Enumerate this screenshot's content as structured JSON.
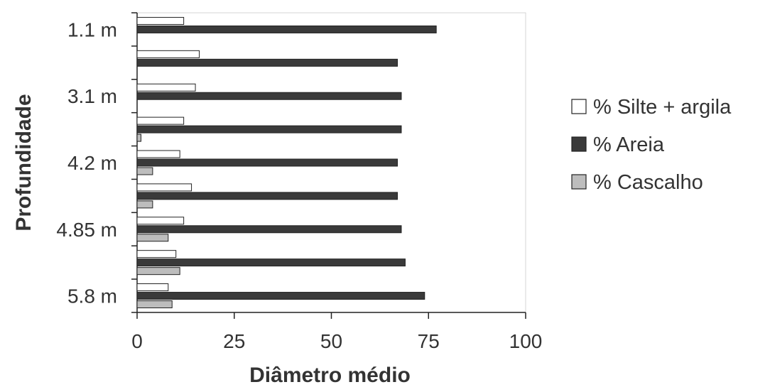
{
  "chart_data": {
    "type": "bar",
    "orientation": "horizontal",
    "xlabel": "Diâmetro médio",
    "ylabel": "Profundidade",
    "xlim": [
      0,
      100
    ],
    "xticks": [
      0,
      25,
      50,
      75,
      100
    ],
    "ytick_labels": [
      {
        "label": "1.1 m",
        "group": 0
      },
      {
        "label": "3.1 m",
        "group": 2
      },
      {
        "label": "4.2 m",
        "group": 4
      },
      {
        "label": "4.85 m",
        "group": 6
      },
      {
        "label": "5.8 m",
        "group": 8
      }
    ],
    "series": [
      {
        "name": "% Silte + argila",
        "color": "#ffffff",
        "values": [
          12,
          16,
          15,
          12,
          11,
          14,
          12,
          10,
          8
        ]
      },
      {
        "name": "% Areia",
        "color": "#3a3a3a",
        "values": [
          77,
          67,
          68,
          68,
          67,
          67,
          68,
          69,
          74
        ]
      },
      {
        "name": "% Cascalho",
        "color": "#bdbdbd",
        "values": [
          0,
          0,
          0,
          1,
          4,
          4,
          8,
          11,
          9
        ]
      }
    ],
    "grid": false,
    "legend": "right"
  }
}
